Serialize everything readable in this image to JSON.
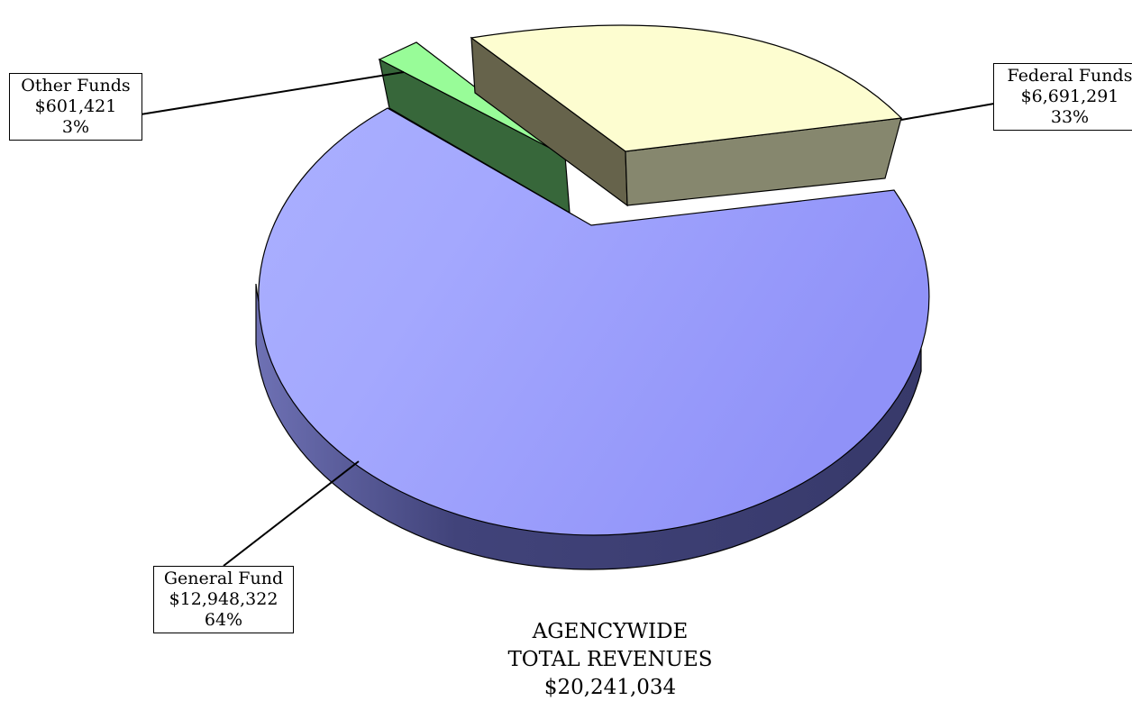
{
  "chart_data": {
    "type": "pie",
    "style": "3d-exploded",
    "title": "",
    "slices": [
      {
        "label": "General Fund",
        "value": 12948322,
        "value_label": "$12,948,322",
        "percent_label": "64%",
        "color": "#9b9efc"
      },
      {
        "label": "Federal Funds",
        "value": 6691291,
        "value_label": "$6,691,291",
        "percent_label": "33%",
        "color": "#fdfdd0"
      },
      {
        "label": "Other Funds",
        "value": 601421,
        "value_label": "$601,421",
        "percent_label": "3%",
        "color": "#98fc98"
      }
    ],
    "total": {
      "line1": "AGENCYWIDE",
      "line2": "TOTAL REVENUES",
      "line3": "$20,241,034"
    }
  }
}
